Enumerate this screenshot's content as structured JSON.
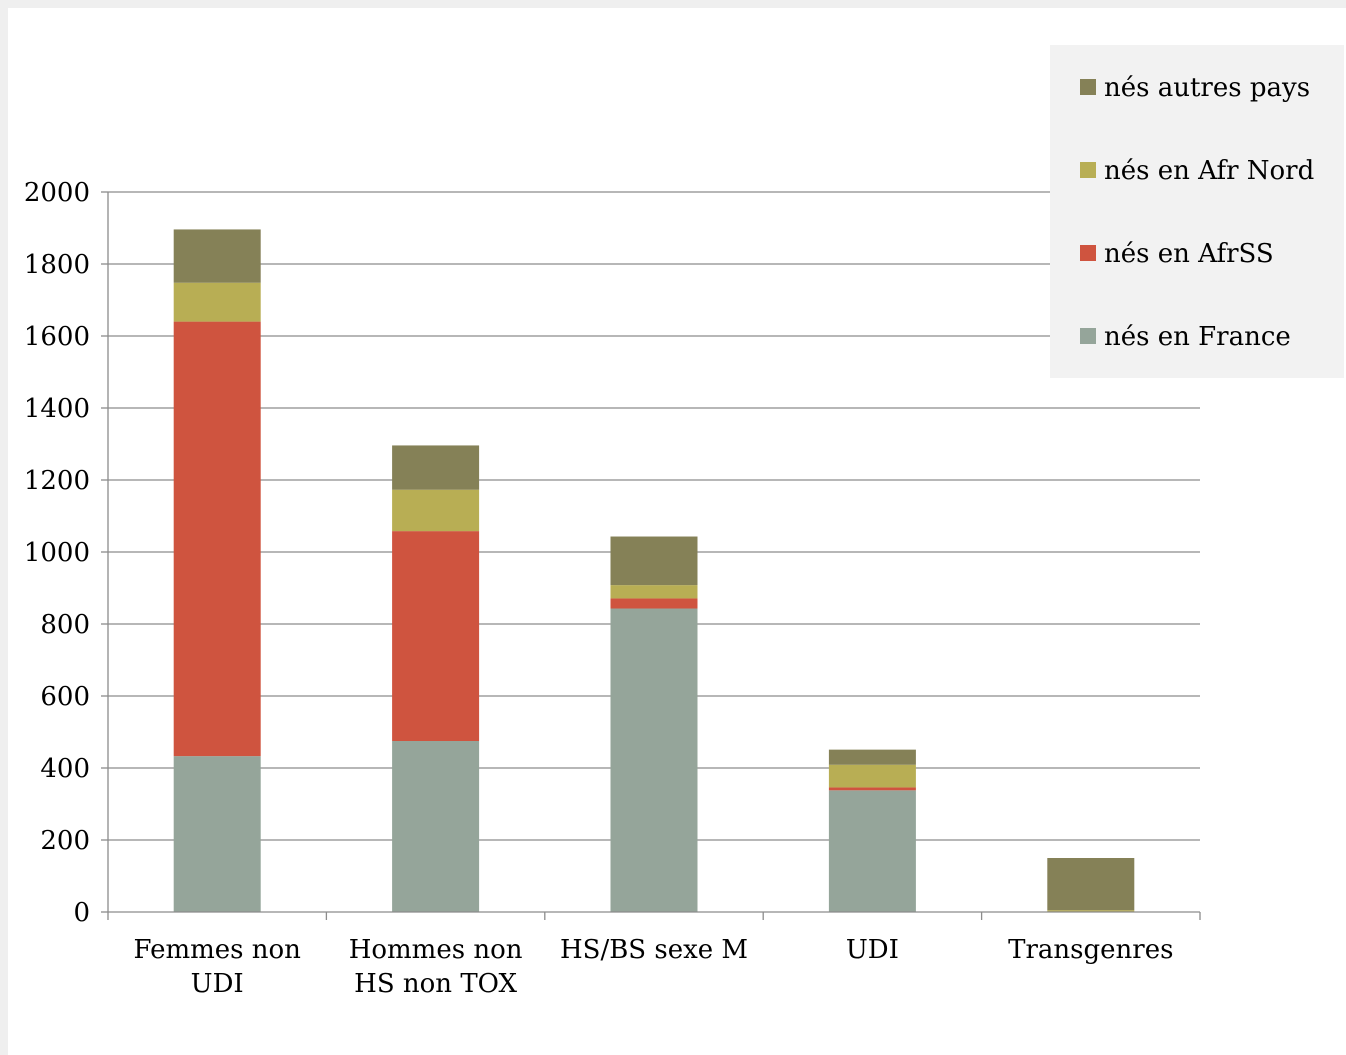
{
  "chart_data": {
    "type": "bar",
    "stacked": true,
    "categories": [
      [
        "Femmes non",
        "UDI"
      ],
      [
        "Hommes non",
        "HS non TOX"
      ],
      [
        "HS/BS sexe M"
      ],
      [
        "UDI"
      ],
      [
        "Transgenres"
      ]
    ],
    "series": [
      {
        "name": "nés en France",
        "color": "#95a59a",
        "values": [
          433,
          475,
          843,
          338,
          0
        ]
      },
      {
        "name": "nés en AfrSS",
        "color": "#cf543f",
        "values": [
          1207,
          583,
          28,
          8,
          0
        ]
      },
      {
        "name": "nés en Afr Nord",
        "color": "#b8ae54",
        "values": [
          108,
          115,
          37,
          63,
          5
        ]
      },
      {
        "name": "nés autres pays",
        "color": "#858157",
        "values": [
          148,
          123,
          135,
          42,
          145
        ]
      }
    ],
    "legend_order": [
      "nés autres pays",
      "nés en Afr Nord",
      "nés en AfrSS",
      "nés en France"
    ],
    "ylim": [
      0,
      2000
    ],
    "yticks": [
      0,
      200,
      400,
      600,
      800,
      1000,
      1200,
      1400,
      1600,
      1800,
      2000
    ],
    "grid": true,
    "legend_position": "top-right",
    "title": "",
    "xlabel": "",
    "ylabel": ""
  }
}
